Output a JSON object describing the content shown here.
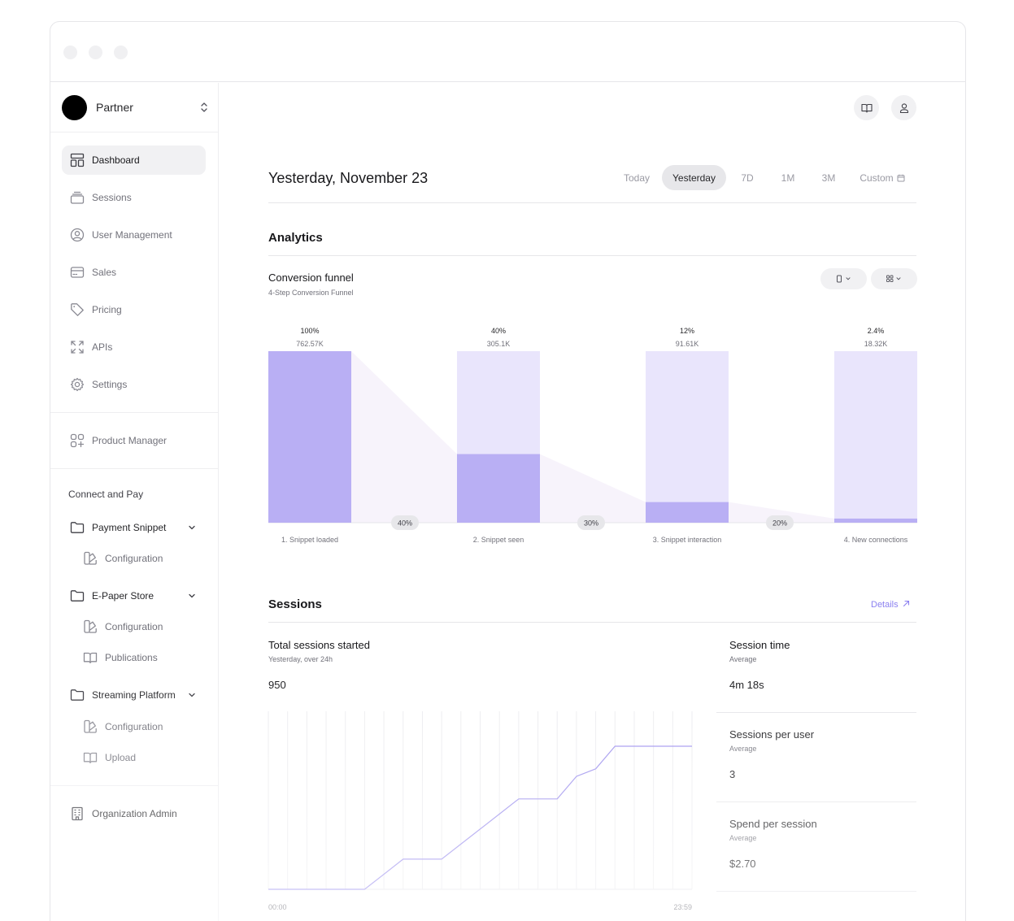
{
  "sidebar": {
    "org_name": "Partner",
    "items": [
      {
        "label": "Dashboard",
        "icon": "layout-icon"
      },
      {
        "label": "Sessions",
        "icon": "stack-icon"
      },
      {
        "label": "User Management",
        "icon": "user-circle-icon"
      },
      {
        "label": "Sales",
        "icon": "credit-card-icon"
      },
      {
        "label": "Pricing",
        "icon": "tag-icon"
      },
      {
        "label": "APIs",
        "icon": "expand-icon"
      },
      {
        "label": "Settings",
        "icon": "gear-icon"
      }
    ],
    "product_manager": "Product Manager",
    "connect_label": "Connect and Pay",
    "groups": [
      {
        "label": "Payment Snippet",
        "children": [
          "Configuration"
        ]
      },
      {
        "label": "E-Paper Store",
        "children": [
          "Configuration",
          "Publications"
        ]
      },
      {
        "label": "Streaming Platform",
        "children": [
          "Configuration",
          "Upload"
        ]
      }
    ],
    "org_admin": "Organization Admin"
  },
  "header": {
    "title": "Yesterday, November 23",
    "ranges": [
      "Today",
      "Yesterday",
      "7D",
      "1M",
      "3M",
      "Custom"
    ],
    "active_range": "Yesterday"
  },
  "analytics": {
    "title": "Analytics",
    "funnel_title": "Conversion funnel",
    "funnel_subtitle": "4-Step Conversion Funnel"
  },
  "sessions": {
    "title": "Sessions",
    "details_label": "Details",
    "total_title": "Total sessions started",
    "total_subtitle": "Yesterday, over 24h",
    "total_value": "950",
    "axis_start": "00:00",
    "axis_end": "23:59",
    "metrics": [
      {
        "title": "Session time",
        "subtitle": "Average",
        "value": "4m 18s"
      },
      {
        "title": "Sessions per user",
        "subtitle": "Average",
        "value": "3"
      },
      {
        "title": "Spend per session",
        "subtitle": "Average",
        "value": "$2.70"
      }
    ]
  },
  "colors": {
    "accent": "#b9aff4",
    "accent_light": "#e9e5fc",
    "line": "#9d91ee"
  },
  "chart_data": [
    {
      "type": "bar",
      "title": "Conversion funnel",
      "subtitle": "4-Step Conversion Funnel",
      "categories": [
        "1. Snippet loaded",
        "2. Snippet seen",
        "3. Snippet interaction",
        "4. New connections"
      ],
      "percent_labels": [
        "100%",
        "40%",
        "12%",
        "2.4%"
      ],
      "value_labels": [
        "762.57K",
        "305.1K",
        "91.61K",
        "18.32K"
      ],
      "values": [
        762570,
        305100,
        91610,
        18320
      ],
      "step_conversion_labels": [
        "40%",
        "30%",
        "20%"
      ],
      "ylim": [
        0,
        762570
      ]
    },
    {
      "type": "line",
      "title": "Total sessions started",
      "x_labels": [
        "00:00",
        "23:59"
      ],
      "x": [
        0,
        1,
        2,
        3,
        4,
        5,
        6,
        7,
        8,
        9,
        10,
        11,
        12,
        13,
        14,
        15,
        16,
        17,
        18,
        19,
        20,
        21,
        22
      ],
      "y": [
        0,
        0,
        0,
        0,
        0,
        0,
        100,
        200,
        200,
        200,
        300,
        400,
        500,
        600,
        600,
        600,
        750,
        800,
        950,
        950,
        950,
        950,
        950
      ],
      "ylim": [
        0,
        950
      ],
      "grid": "vertical"
    }
  ]
}
